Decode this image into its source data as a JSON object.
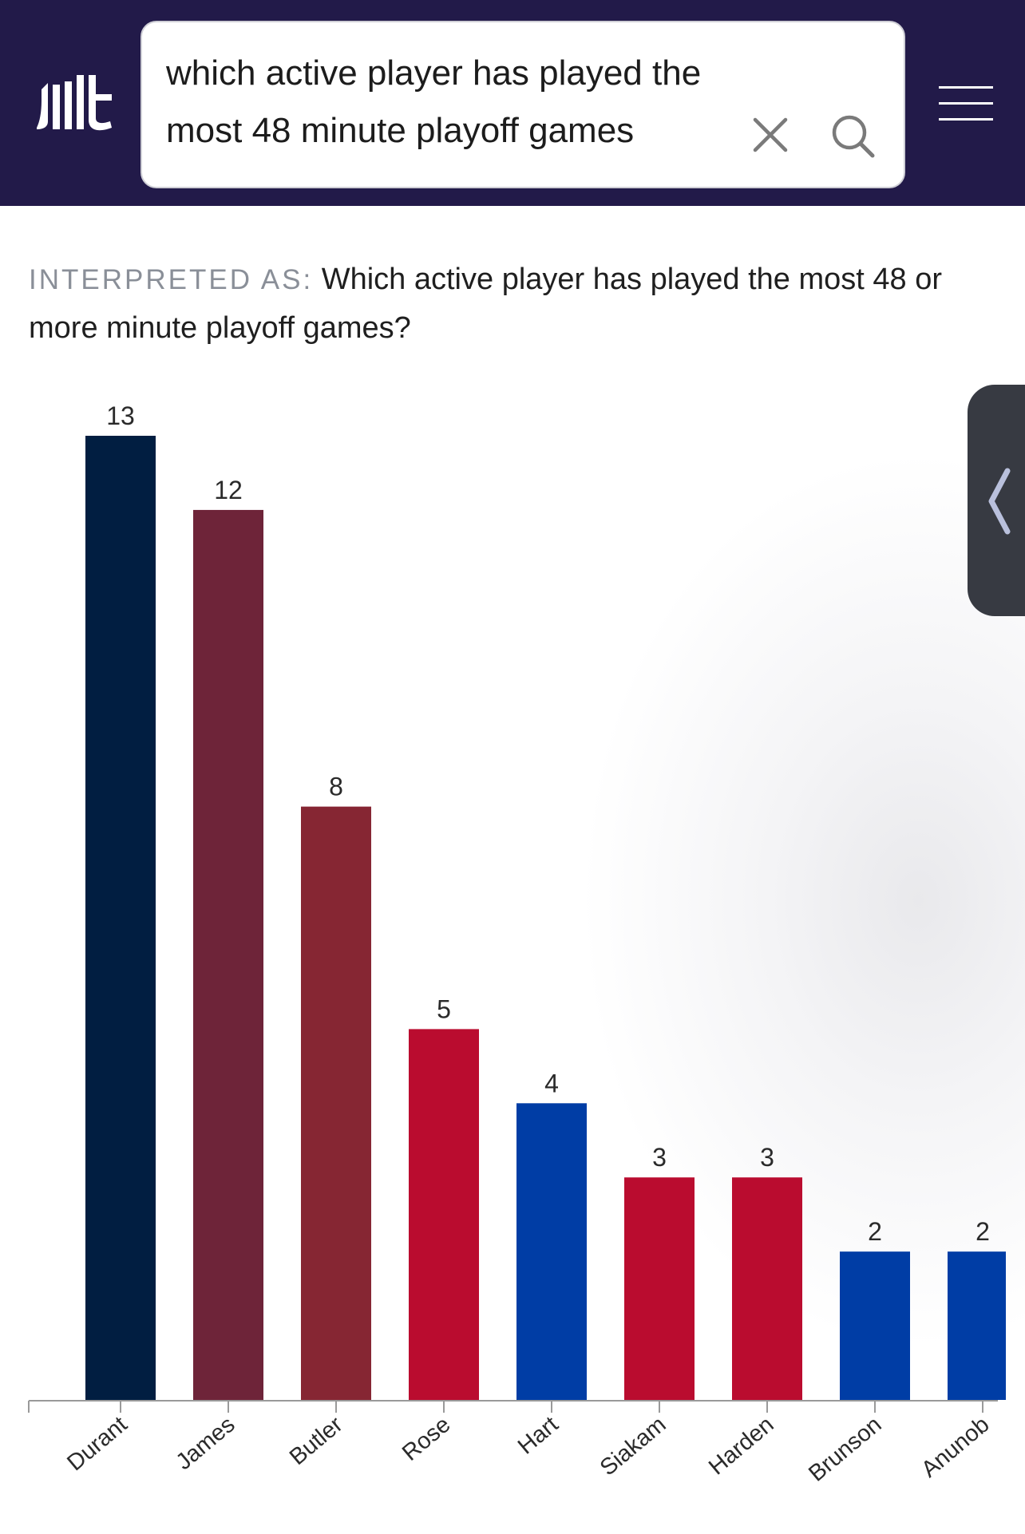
{
  "header": {
    "search_query": "which active player has played the most 48 minute playoff games",
    "logo_icon": "the-athletic-logo-icon",
    "clear_icon": "close-icon",
    "search_icon": "search-icon",
    "menu_icon": "hamburger-menu-icon",
    "background": "#221a49"
  },
  "interpretation": {
    "label": "INTERPRETED AS:",
    "text": "Which active player has played the most 48 or more minute playoff games?"
  },
  "side_panel": {
    "icon": "chevron-left-icon"
  },
  "chart_data": {
    "type": "bar",
    "categories": [
      "Durant",
      "James",
      "Butler",
      "Rose",
      "Hart",
      "Siakam",
      "Harden",
      "Brunson",
      "Anunob"
    ],
    "values": [
      13,
      12,
      8,
      5,
      4,
      3,
      3,
      2,
      2
    ],
    "colors": [
      "#011e41",
      "#6e2439",
      "#862633",
      "#ba0c2f",
      "#003da5",
      "#ba0c2f",
      "#ba0c2f",
      "#003da5",
      "#003da5"
    ],
    "ylim": [
      0,
      13
    ],
    "grid": false,
    "data_labels": true
  }
}
